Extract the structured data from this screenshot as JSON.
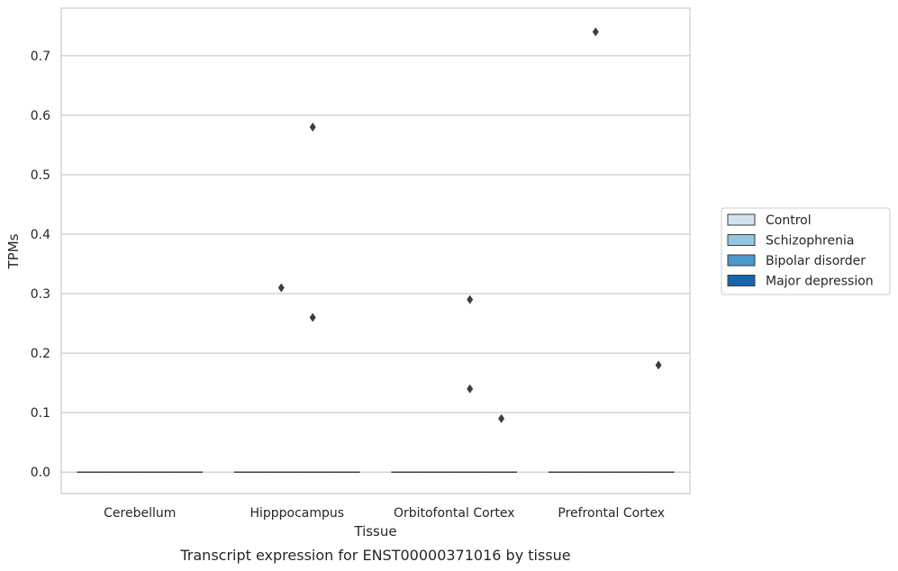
{
  "chart_data": {
    "type": "box",
    "categories": [
      "Cerebellum",
      "Hipppocampus",
      "Orbitofontal Cortex",
      "Prefrontal Cortex"
    ],
    "xlabel": "Tissue",
    "ylabel": "TPMs",
    "ylim": [
      -0.036,
      0.78
    ],
    "yticks": [
      0.0,
      0.1,
      0.2,
      0.3,
      0.4,
      0.5,
      0.6,
      0.7
    ],
    "ytick_labels": [
      "0.0",
      "0.1",
      "0.2",
      "0.3",
      "0.4",
      "0.5",
      "0.6",
      "0.7"
    ],
    "grid": "horizontal",
    "legend_position": "right",
    "series": [
      {
        "name": "Control",
        "color": "#d0e1f2",
        "boxes": [
          {
            "category": "Cerebellum",
            "q1": 0,
            "median": 0,
            "q3": 0,
            "whislo": 0,
            "whishi": 0,
            "outliers": []
          },
          {
            "category": "Hipppocampus",
            "q1": 0,
            "median": 0,
            "q3": 0,
            "whislo": 0,
            "whishi": 0,
            "outliers": []
          },
          {
            "category": "Orbitofontal Cortex",
            "q1": 0,
            "median": 0,
            "q3": 0,
            "whislo": 0,
            "whishi": 0,
            "outliers": []
          },
          {
            "category": "Prefrontal Cortex",
            "q1": 0,
            "median": 0,
            "q3": 0,
            "whislo": 0,
            "whishi": 0,
            "outliers": []
          }
        ]
      },
      {
        "name": "Schizophrenia",
        "color": "#94c4df",
        "boxes": [
          {
            "category": "Cerebellum",
            "q1": 0,
            "median": 0,
            "q3": 0,
            "whislo": 0,
            "whishi": 0,
            "outliers": []
          },
          {
            "category": "Hipppocampus",
            "q1": 0,
            "median": 0,
            "q3": 0,
            "whislo": 0,
            "whishi": 0,
            "outliers": [
              0.31
            ]
          },
          {
            "category": "Orbitofontal Cortex",
            "q1": 0,
            "median": 0,
            "q3": 0,
            "whislo": 0,
            "whishi": 0,
            "outliers": []
          },
          {
            "category": "Prefrontal Cortex",
            "q1": 0,
            "median": 0,
            "q3": 0,
            "whislo": 0,
            "whishi": 0,
            "outliers": [
              0.74
            ]
          }
        ]
      },
      {
        "name": "Bipolar disorder",
        "color": "#4a98c9",
        "boxes": [
          {
            "category": "Cerebellum",
            "q1": 0,
            "median": 0,
            "q3": 0,
            "whislo": 0,
            "whishi": 0,
            "outliers": []
          },
          {
            "category": "Hipppocampus",
            "q1": 0,
            "median": 0,
            "q3": 0,
            "whislo": 0,
            "whishi": 0,
            "outliers": [
              0.58,
              0.26
            ]
          },
          {
            "category": "Orbitofontal Cortex",
            "q1": 0,
            "median": 0,
            "q3": 0,
            "whislo": 0,
            "whishi": 0,
            "outliers": [
              0.29,
              0.14
            ]
          },
          {
            "category": "Prefrontal Cortex",
            "q1": 0,
            "median": 0,
            "q3": 0,
            "whislo": 0,
            "whishi": 0,
            "outliers": []
          }
        ]
      },
      {
        "name": "Major depression",
        "color": "#1764ab",
        "boxes": [
          {
            "category": "Cerebellum",
            "q1": 0,
            "median": 0,
            "q3": 0,
            "whislo": 0,
            "whishi": 0,
            "outliers": []
          },
          {
            "category": "Hipppocampus",
            "q1": 0,
            "median": 0,
            "q3": 0,
            "whislo": 0,
            "whishi": 0,
            "outliers": []
          },
          {
            "category": "Orbitofontal Cortex",
            "q1": 0,
            "median": 0,
            "q3": 0,
            "whislo": 0,
            "whishi": 0,
            "outliers": [
              0.09
            ]
          },
          {
            "category": "Prefrontal Cortex",
            "q1": 0,
            "median": 0,
            "q3": 0,
            "whislo": 0,
            "whishi": 0,
            "outliers": [
              0.18
            ]
          }
        ]
      }
    ],
    "caption": "Transcript expression for ENST00000371016 by tissue"
  }
}
